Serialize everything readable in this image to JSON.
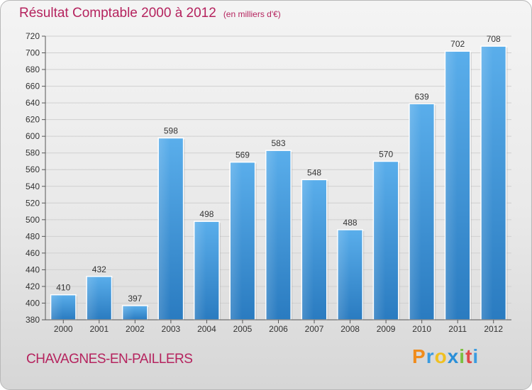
{
  "chart_data": {
    "type": "bar",
    "title": "Résultat Comptable 2000 à 2012",
    "subtitle": "(en milliers d'€)",
    "categories": [
      "2000",
      "2001",
      "2002",
      "2003",
      "2004",
      "2005",
      "2006",
      "2007",
      "2008",
      "2009",
      "2010",
      "2011",
      "2012"
    ],
    "values": [
      410,
      432,
      397,
      598,
      498,
      569,
      583,
      548,
      488,
      570,
      639,
      702,
      708
    ],
    "ylim": [
      380,
      720
    ],
    "yticks": [
      380,
      400,
      420,
      440,
      460,
      480,
      500,
      520,
      540,
      560,
      580,
      600,
      620,
      640,
      660,
      680,
      700,
      720
    ],
    "grid": true,
    "bar_color": "#4a9ee0",
    "label_color": "#b5235e"
  },
  "footer": {
    "commune": "CHAVAGNES-EN-PAILLERS"
  },
  "logo": {
    "letters": [
      "P",
      "r",
      "o",
      "x",
      "i",
      "t",
      "i"
    ],
    "colors": [
      "#f08c1c",
      "#3a9be0",
      "#f0c020",
      "#2a8fd8",
      "#7cc040",
      "#e04848",
      "#3a9be0"
    ]
  }
}
